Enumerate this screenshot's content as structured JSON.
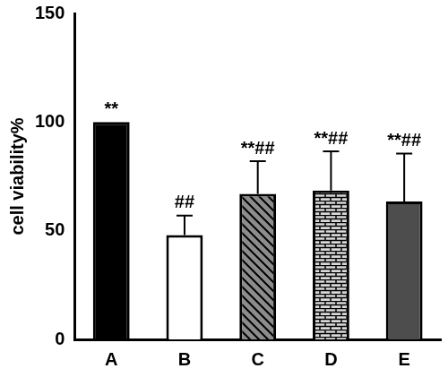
{
  "chart_data": {
    "type": "bar",
    "y_label": "cell viability%",
    "categories": [
      "A",
      "B",
      "C",
      "D",
      "E"
    ],
    "values": [
      100,
      48,
      67,
      68.5,
      63.5
    ],
    "errors": [
      0,
      9,
      15,
      18,
      22
    ],
    "annotations": [
      "**",
      "##",
      "**##",
      "**##",
      "**##"
    ],
    "colors": [
      "#000000",
      "#ffffff",
      "#8c8c8c",
      "#d9d9d9",
      "#4d4d4d"
    ],
    "ylim": [
      0,
      150
    ],
    "yticks": [
      0,
      50,
      100,
      150
    ],
    "grid": false
  }
}
